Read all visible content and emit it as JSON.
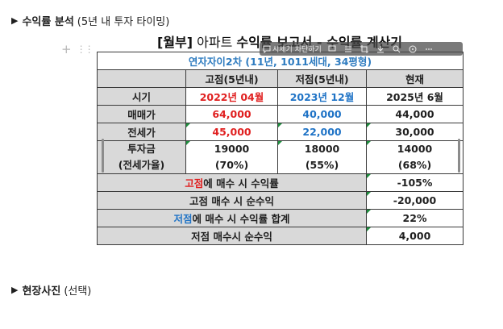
{
  "section1": {
    "label": "수익률 분석",
    "paren": "(5년 내 투자 타이밍)"
  },
  "section2": {
    "label": "현장사진",
    "paren": "(선택)"
  },
  "sheet": {
    "title_bracket": "[월부]",
    "title_light": " 아파트 ",
    "title_rest": "수익률 보고서 - 수익률 계산기",
    "subtitle": "연자자이2차 (11년, 1011세대, 34평형)"
  },
  "toolbar": {
    "comment_label": "시세기 차단하기"
  },
  "table": {
    "headers": [
      "",
      "고점(5년내)",
      "저점(5년내)",
      "현재"
    ],
    "rows": [
      {
        "label": "시기",
        "high": "2022년 04월",
        "low": "2023년 12월",
        "now": "2025년 6월"
      },
      {
        "label": "매매가",
        "high": "64,000",
        "low": "40,000",
        "now": "44,000"
      },
      {
        "label": "전세가",
        "high": "45,000",
        "low": "22,000",
        "now": "30,000"
      }
    ],
    "invest": {
      "label_line1": "투자금",
      "label_line2": "(전세가율)",
      "high_line1": "19000",
      "high_line2": "(70%)",
      "low_line1": "18000",
      "low_line2": "(55%)",
      "now_line1": "14000",
      "now_line2": "(68%)"
    },
    "summary": [
      {
        "prefix": "고점",
        "prefix_color": "red",
        "text": "에 매수 시 수익률",
        "value": "-105%"
      },
      {
        "prefix": "",
        "prefix_color": "",
        "text": "고점 매수 시 순수익",
        "value": "-20,000"
      },
      {
        "prefix": "저점",
        "prefix_color": "blue",
        "text": "에 매수 시 수익률 합계",
        "value": "22%"
      },
      {
        "prefix": "",
        "prefix_color": "",
        "text": "저점 매수시 순수익",
        "value": "4,000"
      }
    ]
  }
}
